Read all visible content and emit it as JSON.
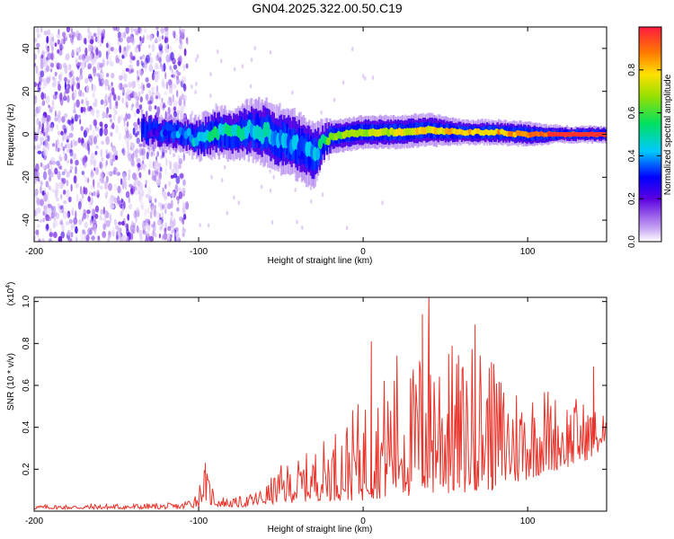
{
  "title": "GN04.2025.322.00.50.C19",
  "chart_data": [
    {
      "type": "heatmap",
      "xlabel": "Height of straight line (km)",
      "ylabel": "Frequency (Hz)",
      "xlim": [
        -200,
        148
      ],
      "ylim": [
        -50,
        50
      ],
      "xticks": [
        -200,
        -100,
        0,
        100
      ],
      "yticks": [
        -40,
        -20,
        0,
        20,
        40
      ],
      "colorbar": {
        "label": "Normalized spectral amplitude",
        "range": [
          0,
          1
        ],
        "ticks": [
          "0.0",
          "0.2",
          "0.4",
          "0.6",
          "0.8"
        ],
        "tick_values": [
          0,
          0.2,
          0.4,
          0.6,
          0.8
        ]
      },
      "noise_region": {
        "x_start": -200,
        "x_end": -107,
        "y_range": [
          -50,
          50
        ]
      },
      "ridge": {
        "x": [
          -130,
          -110,
          -100,
          -90,
          -80,
          -70,
          -60,
          -50,
          -40,
          -30,
          -25,
          -20,
          -10,
          0,
          20,
          40,
          60,
          80,
          100,
          120,
          148
        ],
        "freq": [
          2,
          0,
          -2,
          1,
          0,
          2,
          1,
          -3,
          -5,
          -10,
          -4,
          -1,
          0,
          1,
          1,
          2,
          1,
          1,
          0,
          0,
          0
        ],
        "amplitude": [
          0.25,
          0.4,
          0.45,
          0.5,
          0.5,
          0.45,
          0.45,
          0.4,
          0.4,
          0.35,
          0.55,
          0.6,
          0.65,
          0.7,
          0.72,
          0.8,
          0.8,
          0.82,
          0.85,
          0.92,
          0.95
        ],
        "halfwidth": [
          4,
          4,
          5,
          6,
          6,
          7,
          8,
          8,
          8,
          8,
          5,
          4,
          4,
          4,
          4,
          4,
          3,
          3,
          3,
          2,
          2
        ]
      }
    },
    {
      "type": "line",
      "xlabel": "Height of straight line (km)",
      "ylabel": "SNR (10 * v/v)",
      "yscale_label": "(x10",
      "yscale_exp": "4",
      "ylabel_suffix": ")",
      "xlim": [
        -200,
        148
      ],
      "ylim": [
        0,
        1.02
      ],
      "xticks": [
        -200,
        -100,
        0,
        100
      ],
      "yticks": [
        0.2,
        0.4,
        0.6,
        0.8,
        1.0
      ],
      "ytick_labels": [
        "0.2",
        "0.4",
        "0.6",
        "0.8",
        "1.0"
      ],
      "color": "#e8332a",
      "envelope": {
        "x": [
          -200,
          -110,
          -100,
          -97,
          -93,
          -88,
          -80,
          -70,
          -60,
          -50,
          -40,
          -30,
          -20,
          -10,
          0,
          10,
          20,
          30,
          40,
          50,
          60,
          70,
          80,
          90,
          100,
          110,
          120,
          130,
          140,
          148
        ],
        "low": [
          0.01,
          0.01,
          0.02,
          0.06,
          0.03,
          0.02,
          0.02,
          0.02,
          0.03,
          0.04,
          0.04,
          0.05,
          0.05,
          0.05,
          0.05,
          0.06,
          0.06,
          0.07,
          0.07,
          0.08,
          0.08,
          0.1,
          0.1,
          0.12,
          0.15,
          0.18,
          0.2,
          0.22,
          0.26,
          0.3
        ],
        "high": [
          0.03,
          0.04,
          0.12,
          0.22,
          0.15,
          0.08,
          0.06,
          0.08,
          0.12,
          0.22,
          0.25,
          0.3,
          0.38,
          0.45,
          0.55,
          0.6,
          0.8,
          0.7,
          0.95,
          0.85,
          0.75,
          0.85,
          0.7,
          0.65,
          0.6,
          0.62,
          0.55,
          0.55,
          0.5,
          0.48
        ]
      },
      "peaks": [
        {
          "x": -96,
          "y": 0.23
        },
        {
          "x": 5,
          "y": 0.81
        },
        {
          "x": 36,
          "y": 0.94
        },
        {
          "x": 40,
          "y": 1.02
        },
        {
          "x": 52,
          "y": 0.75
        },
        {
          "x": 68,
          "y": 0.89
        },
        {
          "x": 78,
          "y": 0.71
        },
        {
          "x": 140,
          "y": 0.69
        }
      ]
    }
  ]
}
